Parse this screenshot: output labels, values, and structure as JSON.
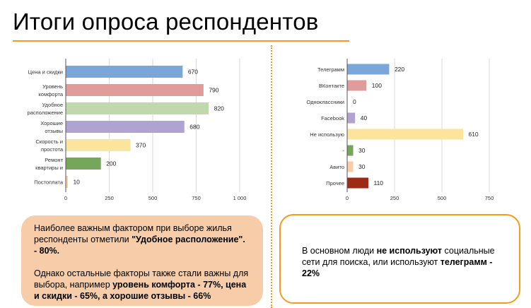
{
  "title": "Итоги опроса респондентов",
  "chart_data": [
    {
      "type": "bar",
      "orientation": "horizontal",
      "categories": [
        "Цена и скидки",
        [
          "Уровень",
          "комфорта"
        ],
        [
          "Удобное",
          "расположение"
        ],
        [
          "Хорошие",
          "отзывы"
        ],
        [
          "Скорость и",
          "простота"
        ],
        [
          "Ремонт",
          "квартиры и"
        ],
        "Постоплата"
      ],
      "values": [
        670,
        790,
        820,
        680,
        370,
        200,
        10
      ],
      "colors": [
        "#7ba6d9",
        "#e09c9a",
        "#bfd9ad",
        "#b0a3d2",
        "#fbe49c",
        "#76a65a",
        "#fbcf98"
      ],
      "xlim": [
        0,
        1000
      ],
      "xticks": [
        "0",
        "250",
        "500",
        "750",
        "1 000"
      ],
      "xtick_values": [
        0,
        250,
        500,
        750,
        1000
      ],
      "grid": true,
      "data_labels": true
    },
    {
      "type": "bar",
      "orientation": "horizontal",
      "categories": [
        "Телеграмм",
        "ВКонтакте",
        "Одноклассники",
        "Facebook",
        "Не использую",
        "-",
        "Авито",
        "Прочее"
      ],
      "values": [
        220,
        100,
        0,
        40,
        610,
        30,
        30,
        110
      ],
      "colors": [
        "#7ba6d9",
        "#e09c9a",
        "#bfd9ad",
        "#b0a3d2",
        "#fbe49c",
        "#76a65a",
        "#f7cfa6",
        "#9c2a15"
      ],
      "xlim": [
        0,
        750
      ],
      "xticks": [
        "0",
        "250",
        "500",
        "750"
      ],
      "xtick_values": [
        0,
        250,
        500,
        750
      ],
      "grid": true,
      "data_labels": true
    }
  ],
  "box_left": {
    "p1_a": "Наиболее важным фактором при выборе жилья респонденты отметили ",
    "p1_b": "\"Удобное расположение\". - 80%.",
    "p2_a": "Однако остальные факторы также стали важны для выбора, например ",
    "p2_b": "уровень комфорта - 77%, цена и скидки - 65%, а хорошие отзывы - 66%"
  },
  "box_right": {
    "a": "В основном люди ",
    "b": "не используют",
    "c": " социальные сети для поиска, или используют ",
    "d": "телеграмм - 22%"
  }
}
